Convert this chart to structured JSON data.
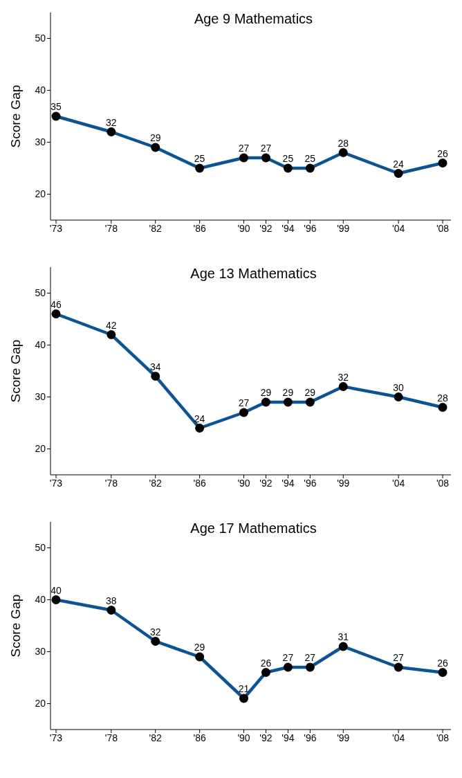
{
  "chart_data": [
    {
      "type": "line",
      "title": "Age 9 Mathematics",
      "ylabel": "Score Gap",
      "x": [
        1973,
        1978,
        1982,
        1986,
        1990,
        1992,
        1994,
        1996,
        1999,
        2004,
        2008
      ],
      "series": [
        {
          "color": "#0b5394",
          "values": [
            35,
            32,
            29,
            25,
            27,
            27,
            25,
            25,
            28,
            24,
            26
          ]
        }
      ],
      "xlim": [
        1972.5,
        2008.75
      ],
      "xticks": [
        {
          "value": 1973,
          "label": "'73"
        },
        {
          "value": 1978,
          "label": "'78"
        },
        {
          "value": 1982,
          "label": "'82"
        },
        {
          "value": 1986,
          "label": "'86"
        },
        {
          "value": 1990,
          "label": "'90"
        },
        {
          "value": 1992,
          "label": "'92"
        },
        {
          "value": 1994,
          "label": "'94"
        },
        {
          "value": 1996,
          "label": "'96"
        },
        {
          "value": 1999,
          "label": "'99"
        },
        {
          "value": 2004,
          "label": "'04"
        },
        {
          "value": 2008,
          "label": "'08"
        }
      ],
      "ylim": [
        15,
        55
      ],
      "yticks": [
        20,
        30,
        40,
        50
      ],
      "grid": false,
      "legend": false,
      "marker": "circle",
      "line_style": "solid",
      "data_labels": true
    },
    {
      "type": "line",
      "title": "Age 13 Mathematics",
      "ylabel": "Score Gap",
      "x": [
        1973,
        1978,
        1982,
        1986,
        1990,
        1992,
        1994,
        1996,
        1999,
        2004,
        2008
      ],
      "series": [
        {
          "color": "#0b5394",
          "values": [
            46,
            42,
            34,
            24,
            27,
            29,
            29,
            29,
            32,
            30,
            28
          ]
        }
      ],
      "xlim": [
        1972.5,
        2008.75
      ],
      "xticks": [
        {
          "value": 1973,
          "label": "'73"
        },
        {
          "value": 1978,
          "label": "'78"
        },
        {
          "value": 1982,
          "label": "'82"
        },
        {
          "value": 1986,
          "label": "'86"
        },
        {
          "value": 1990,
          "label": "'90"
        },
        {
          "value": 1992,
          "label": "'92"
        },
        {
          "value": 1994,
          "label": "'94"
        },
        {
          "value": 1996,
          "label": "'96"
        },
        {
          "value": 1999,
          "label": "'99"
        },
        {
          "value": 2004,
          "label": "'04"
        },
        {
          "value": 2008,
          "label": "'08"
        }
      ],
      "ylim": [
        15,
        55
      ],
      "yticks": [
        20,
        30,
        40,
        50
      ],
      "grid": false,
      "legend": false,
      "marker": "circle",
      "line_style": "solid",
      "data_labels": true
    },
    {
      "type": "line",
      "title": "Age 17 Mathematics",
      "ylabel": "Score Gap",
      "x": [
        1973,
        1978,
        1982,
        1986,
        1990,
        1992,
        1994,
        1996,
        1999,
        2004,
        2008
      ],
      "series": [
        {
          "color": "#0b5394",
          "values": [
            40,
            38,
            32,
            29,
            21,
            26,
            27,
            27,
            31,
            27,
            26
          ]
        }
      ],
      "xlim": [
        1972.5,
        2008.75
      ],
      "xticks": [
        {
          "value": 1973,
          "label": "'73"
        },
        {
          "value": 1978,
          "label": "'78"
        },
        {
          "value": 1982,
          "label": "'82"
        },
        {
          "value": 1986,
          "label": "'86"
        },
        {
          "value": 1990,
          "label": "'90"
        },
        {
          "value": 1992,
          "label": "'92"
        },
        {
          "value": 1994,
          "label": "'94"
        },
        {
          "value": 1996,
          "label": "'96"
        },
        {
          "value": 1999,
          "label": "'99"
        },
        {
          "value": 2004,
          "label": "'04"
        },
        {
          "value": 2008,
          "label": "'08"
        }
      ],
      "ylim": [
        15,
        55
      ],
      "yticks": [
        20,
        30,
        40,
        50
      ],
      "grid": false,
      "legend": false,
      "marker": "circle",
      "line_style": "solid",
      "data_labels": true
    }
  ]
}
